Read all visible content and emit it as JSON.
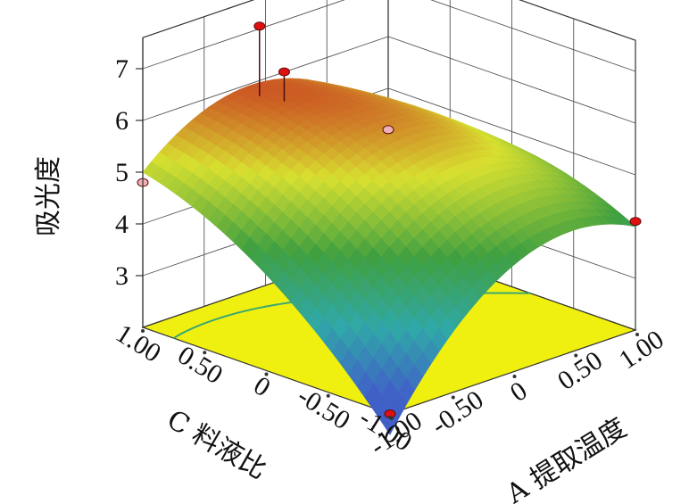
{
  "chart_data": {
    "type": "surface3d",
    "title": "",
    "zlabel": "吸光度",
    "xlabel": "A 提取温度",
    "ylabel": "C 料液比",
    "z_ticks": [
      "3",
      "4",
      "5",
      "6",
      "7"
    ],
    "x_ticks": [
      "-1.00",
      "-0.50",
      "0",
      "0.50",
      "1.00"
    ],
    "y_ticks": [
      "-1.00",
      "-0.50",
      "0",
      "0.50",
      "1.00"
    ],
    "x_range": [
      -1,
      1
    ],
    "y_range": [
      -1,
      1
    ],
    "z_range": [
      3,
      7
    ],
    "corner_values": [
      {
        "A": -1,
        "C": -1,
        "z": 2.2
      },
      {
        "A": 1,
        "C": -1,
        "z": 4.1
      },
      {
        "A": -1,
        "C": 1,
        "z": 4.9
      },
      {
        "A": 1,
        "C": 1,
        "z": 4.4
      }
    ],
    "surface_peak": {
      "A": -0.55,
      "C": 0.5,
      "z": 7.0
    },
    "design_points": [
      {
        "A": -1,
        "C": 1,
        "z": 4.8
      },
      {
        "A": 1,
        "C": -1,
        "z": 4.1
      },
      {
        "A": -1,
        "C": -1,
        "z": 2.0
      },
      {
        "A": 1,
        "C": 1,
        "z": 4.2
      },
      {
        "A": -0.15,
        "C": 0.7,
        "z": 6.5
      },
      {
        "A": -0.2,
        "C": 0.85,
        "z": 7.3
      }
    ],
    "colormap": [
      "#4060c8",
      "#30a8a8",
      "#40a040",
      "#d8e030",
      "#c83020",
      "#4a0810"
    ],
    "floor_color": "#f0f010",
    "grid": true
  }
}
